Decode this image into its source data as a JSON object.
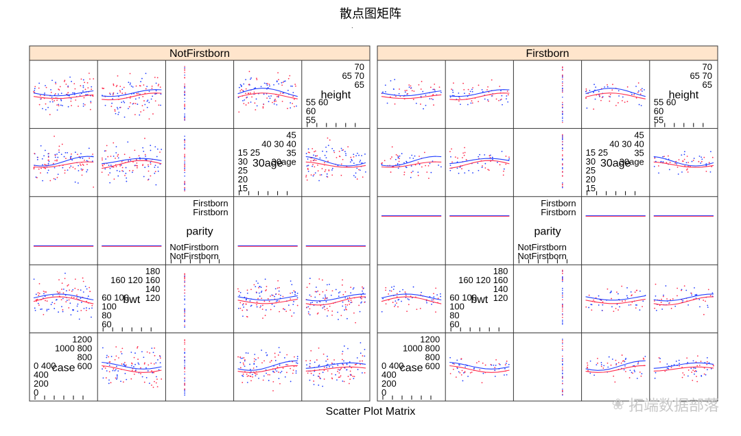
{
  "title": "散点图矩阵",
  "title_dot": ".",
  "xlabel": "Scatter Plot Matrix",
  "watermark": "拓端数据部落",
  "colors": {
    "strip": "#ffe5cc",
    "series_blue": "#1f3cff",
    "series_red": "#ff2a4a",
    "frame": "#333333"
  },
  "chart_data": {
    "type": "scatter",
    "subtype": "scatterplot-matrix",
    "variables": [
      "height",
      "age",
      "parity",
      "bwt",
      "case"
    ],
    "panels": [
      {
        "name": "NotFirstborn",
        "diagonals": [
          {
            "var": "height",
            "label": "height",
            "ticks_top": [
              "70",
              "65 70",
              "65"
            ],
            "ticks_bottom": [
              "55 60",
              "60",
              "55"
            ]
          },
          {
            "var": "age",
            "label": "30age",
            "ticks_top": [
              "45",
              "40 30 40",
              "35",
              "30age"
            ],
            "ticks_bottom": [
              "15  25",
              "30",
              "25",
              "20",
              "15"
            ]
          },
          {
            "var": "parity",
            "label": "parity",
            "ticks_top": [
              "Firstborn",
              "Firstborn"
            ],
            "ticks_bottom": [
              "NotFirstborn",
              "NotFirstborn"
            ]
          },
          {
            "var": "bwt",
            "label": "bwt",
            "ticks_top": [
              "180",
              "160 120 160",
              "140",
              "120"
            ],
            "ticks_bottom": [
              "60  100",
              "100",
              "80",
              "60"
            ]
          },
          {
            "var": "case",
            "label": "case",
            "ticks_top": [
              "1200",
              "1000 800",
              "800",
              "600"
            ],
            "ticks_bottom": [
              "0  400",
              "400",
              "200",
              "0"
            ]
          }
        ]
      },
      {
        "name": "Firstborn",
        "diagonals": [
          {
            "var": "height",
            "label": "height",
            "ticks_top": [
              "70",
              "65 70",
              "65"
            ],
            "ticks_bottom": [
              "55 60",
              "60",
              "55"
            ]
          },
          {
            "var": "age",
            "label": "30age",
            "ticks_top": [
              "45",
              "40 30 40",
              "35",
              "30age"
            ],
            "ticks_bottom": [
              "15  25",
              "30",
              "25",
              "20",
              "15"
            ]
          },
          {
            "var": "parity",
            "label": "parity",
            "ticks_top": [
              "Firstborn",
              "Firstborn"
            ],
            "ticks_bottom": [
              "NotFirstborn",
              "NotFirstborn"
            ]
          },
          {
            "var": "bwt",
            "label": "bwt",
            "ticks_top": [
              "180",
              "160 120 160",
              "140",
              "120"
            ],
            "ticks_bottom": [
              "60  100",
              "100",
              "80",
              "60"
            ]
          },
          {
            "var": "case",
            "label": "case",
            "ticks_top": [
              "1200",
              "1000 800",
              "800",
              "600"
            ],
            "ticks_bottom": [
              "0  400",
              "400",
              "200",
              "0"
            ]
          }
        ]
      }
    ],
    "ranges": {
      "height": [
        53,
        72
      ],
      "age": [
        15,
        45
      ],
      "bwt": [
        55,
        180
      ],
      "case": [
        0,
        1250
      ]
    },
    "series": [
      {
        "name": "blue",
        "color": "#1f3cff"
      },
      {
        "name": "red",
        "color": "#ff2a4a"
      }
    ],
    "grid": false
  }
}
